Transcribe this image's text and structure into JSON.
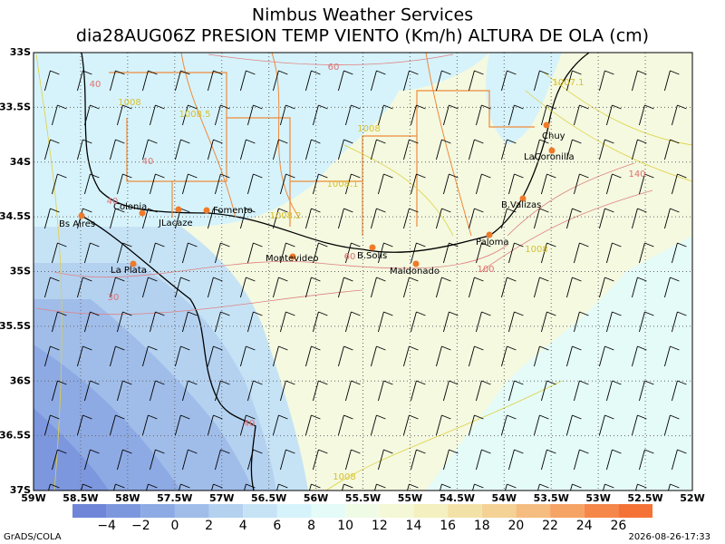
{
  "header": {
    "title": "Nimbus Weather Services",
    "subtitle": "dia28AUG06Z PRESION TEMP VIENTO (Km/h) ALTURA DE OLA (cm)"
  },
  "map": {
    "lat_labels": [
      "33S",
      "33.5S",
      "34S",
      "34.5S",
      "35S",
      "35.5S",
      "36S",
      "36.5S",
      "37S"
    ],
    "lon_labels": [
      "59W",
      "58.5W",
      "58W",
      "57.5W",
      "57W",
      "56.5W",
      "56W",
      "55.5W",
      "55W",
      "54.5W",
      "54W",
      "53.5W",
      "53W",
      "52.5W",
      "52W"
    ],
    "places": [
      "Colonia",
      "Bs Aires",
      "JLacaze",
      "Fomento",
      "La Plata",
      "Montevideo",
      "B.Solis",
      "Maldonado",
      "Paloma",
      "B.Valizas",
      "LaCoronilla",
      "Chuy"
    ],
    "contour_labels": [
      "60",
      "40",
      "1008",
      "1008.5",
      "1008",
      "40",
      "40",
      "1008.1",
      "1008.2",
      "60",
      "100",
      "30",
      "40",
      "1008",
      "1007.1",
      "140",
      "1008"
    ]
  },
  "colorbar": {
    "labels": [
      "−4",
      "−2",
      "0",
      "2",
      "4",
      "6",
      "8",
      "10",
      "12",
      "14",
      "16",
      "18",
      "20",
      "22",
      "24",
      "26"
    ],
    "colors": [
      "#6f85d8",
      "#7d97de",
      "#8eaae4",
      "#a0bdea",
      "#b4d1f0",
      "#c6e3f6",
      "#d6f3fb",
      "#e4fbf8",
      "#f0fbe6",
      "#f4f8d6",
      "#f5f0c0",
      "#f3e2a8",
      "#f4d296",
      "#f5bd80",
      "#f6a366",
      "#f6874a",
      "#f57236"
    ]
  },
  "footer": {
    "left": "GrADS/COLA",
    "right": "2026-08-26-17:33"
  }
}
